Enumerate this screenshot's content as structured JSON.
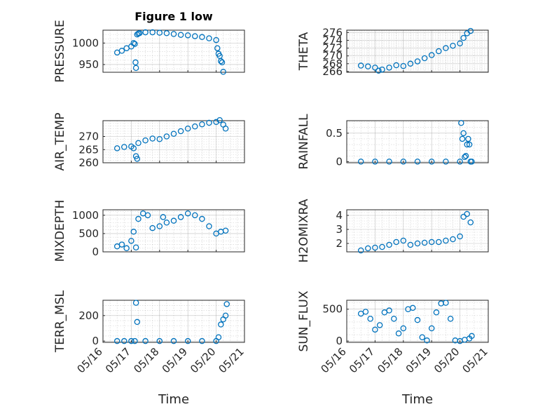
{
  "colors": {
    "marker": "#0072BD",
    "axis": "#262626",
    "grid": "#8c8c8c",
    "background": "#ffffff"
  },
  "chart_data": [
    {
      "type": "scatter",
      "panel": "pressure",
      "title": "Figure 1 low",
      "ylabel": "PRESSURE",
      "xlim": [
        "05/16 00:00",
        "05/21 00:00"
      ],
      "ylim": [
        932,
        1030
      ],
      "yticks": [
        950,
        1000
      ],
      "xticks": [
        "05/16",
        "05/17",
        "05/18",
        "05/19",
        "05/20",
        "05/21"
      ],
      "x": [
        "05/16 12:00",
        "05/16 16:00",
        "05/16 20:00",
        "05/17 00:00",
        "05/17 02:00",
        "05/17 03:00",
        "05/17 03:36",
        "05/17 04:00",
        "05/17 05:00",
        "05/17 06:00",
        "05/17 07:00",
        "05/17 12:00",
        "05/17 18:00",
        "05/18 00:00",
        "05/18 06:00",
        "05/18 12:00",
        "05/18 18:00",
        "05/19 00:00",
        "05/19 06:00",
        "05/19 12:00",
        "05/19 18:00",
        "05/20 00:00",
        "05/20 01:00",
        "05/20 02:00",
        "05/20 03:00",
        "05/20 04:00",
        "05/20 05:00",
        "05/20 06:00"
      ],
      "y": [
        978,
        982,
        988,
        992,
        1000,
        998,
        955,
        942,
        1020,
        1022,
        1023,
        1025,
        1025,
        1024,
        1023,
        1021,
        1019,
        1018,
        1016,
        1014,
        1011,
        1007,
        988,
        975,
        970,
        958,
        955,
        933
      ]
    },
    {
      "type": "scatter",
      "panel": "theta",
      "ylabel": "THETA",
      "xlim": [
        "05/16 00:00",
        "05/21 00:00"
      ],
      "ylim": [
        265.8,
        276.6
      ],
      "yticks": [
        266,
        268,
        270,
        272,
        274,
        276
      ],
      "x": [
        "05/16 12:00",
        "05/16 18:00",
        "05/17 00:00",
        "05/17 03:00",
        "05/17 06:00",
        "05/17 12:00",
        "05/17 18:00",
        "05/18 00:00",
        "05/18 06:00",
        "05/18 12:00",
        "05/18 18:00",
        "05/19 00:00",
        "05/19 06:00",
        "05/19 12:00",
        "05/19 18:00",
        "05/20 00:00",
        "05/20 03:00",
        "05/20 06:00",
        "05/20 09:00"
      ],
      "y": [
        267.5,
        267.3,
        267.0,
        266.2,
        266.5,
        267.0,
        267.6,
        267.4,
        268.0,
        268.6,
        269.4,
        270.2,
        271.2,
        272.0,
        272.6,
        273.2,
        274.6,
        275.8,
        276.4
      ]
    },
    {
      "type": "scatter",
      "panel": "air_temp",
      "ylabel": "AIR_TEMP",
      "xlim": [
        "05/16 00:00",
        "05/21 00:00"
      ],
      "ylim": [
        260,
        276
      ],
      "yticks": [
        260,
        265,
        270
      ],
      "x": [
        "05/16 12:00",
        "05/16 18:00",
        "05/17 00:00",
        "05/17 02:00",
        "05/17 04:00",
        "05/17 05:00",
        "05/17 06:00",
        "05/17 12:00",
        "05/17 18:00",
        "05/18 00:00",
        "05/18 06:00",
        "05/18 12:00",
        "05/18 18:00",
        "05/19 00:00",
        "05/19 06:00",
        "05/19 12:00",
        "05/19 18:00",
        "05/20 00:00",
        "05/20 03:00",
        "05/20 06:00",
        "05/20 08:00"
      ],
      "y": [
        265.5,
        266.0,
        266.2,
        265.5,
        262.5,
        261.5,
        267.5,
        268.5,
        269.2,
        269.0,
        270.0,
        271.0,
        272.0,
        273.0,
        273.8,
        274.6,
        275.2,
        275.5,
        276.2,
        274.5,
        273.0
      ]
    },
    {
      "type": "scatter",
      "panel": "rainfall",
      "ylabel": "RAINFALL",
      "xlim": [
        "05/16 00:00",
        "05/21 00:00"
      ],
      "ylim": [
        -0.02,
        0.72
      ],
      "yticks": [
        0,
        0.5
      ],
      "x": [
        "05/16 12:00",
        "05/17 00:00",
        "05/17 12:00",
        "05/18 00:00",
        "05/18 12:00",
        "05/19 00:00",
        "05/19 12:00",
        "05/20 00:00",
        "05/20 01:00",
        "05/20 02:00",
        "05/20 03:00",
        "05/20 04:00",
        "05/20 05:00",
        "05/20 06:00",
        "05/20 07:00",
        "05/20 08:00",
        "05/20 09:00",
        "05/20 10:00"
      ],
      "y": [
        0,
        0,
        0,
        0,
        0,
        0,
        0,
        0,
        0.68,
        0.4,
        0.5,
        0.08,
        0.1,
        0.3,
        0.4,
        0.3,
        0.0,
        0.0
      ]
    },
    {
      "type": "scatter",
      "panel": "mixdepth",
      "ylabel": "MIXDEPTH",
      "xlim": [
        "05/16 00:00",
        "05/21 00:00"
      ],
      "ylim": [
        0,
        1150
      ],
      "yticks": [
        0,
        500,
        1000
      ],
      "x": [
        "05/16 12:00",
        "05/16 16:00",
        "05/16 20:00",
        "05/17 00:00",
        "05/17 02:00",
        "05/17 04:00",
        "05/17 06:00",
        "05/17 10:00",
        "05/17 14:00",
        "05/17 18:00",
        "05/18 00:00",
        "05/18 03:00",
        "05/18 06:00",
        "05/18 12:00",
        "05/18 18:00",
        "05/19 00:00",
        "05/19 06:00",
        "05/19 12:00",
        "05/19 18:00",
        "05/20 00:00",
        "05/20 04:00",
        "05/20 08:00"
      ],
      "y": [
        150,
        200,
        100,
        300,
        550,
        120,
        900,
        1050,
        1000,
        650,
        700,
        950,
        800,
        850,
        950,
        1050,
        1000,
        900,
        700,
        500,
        550,
        580
      ]
    },
    {
      "type": "scatter",
      "panel": "h2omixra",
      "ylabel": "H2OMIXRA",
      "xlim": [
        "05/16 00:00",
        "05/21 00:00"
      ],
      "ylim": [
        1.4,
        4.4
      ],
      "yticks": [
        2,
        3,
        4
      ],
      "x": [
        "05/16 12:00",
        "05/16 18:00",
        "05/17 00:00",
        "05/17 06:00",
        "05/17 12:00",
        "05/17 18:00",
        "05/18 00:00",
        "05/18 06:00",
        "05/18 12:00",
        "05/18 18:00",
        "05/19 00:00",
        "05/19 06:00",
        "05/19 12:00",
        "05/19 18:00",
        "05/20 00:00",
        "05/20 03:00",
        "05/20 06:00",
        "05/20 09:00"
      ],
      "y": [
        1.5,
        1.65,
        1.7,
        1.75,
        1.9,
        2.1,
        2.2,
        1.9,
        2.0,
        2.05,
        2.1,
        2.1,
        2.2,
        2.3,
        2.5,
        3.9,
        4.1,
        3.5
      ]
    },
    {
      "type": "scatter",
      "panel": "terr_msl",
      "ylabel": "TERR_MSL",
      "xlabel": "Time",
      "xlim": [
        "05/16 00:00",
        "05/21 00:00"
      ],
      "ylim": [
        -10,
        320
      ],
      "yticks": [
        0,
        200
      ],
      "x": [
        "05/16 12:00",
        "05/16 18:00",
        "05/17 00:00",
        "05/17 03:00",
        "05/17 04:00",
        "05/17 05:00",
        "05/17 12:00",
        "05/18 00:00",
        "05/18 12:00",
        "05/19 00:00",
        "05/19 12:00",
        "05/20 00:00",
        "05/20 02:00",
        "05/20 04:00",
        "05/20 06:00",
        "05/20 08:00",
        "05/20 09:00"
      ],
      "y": [
        0,
        0,
        0,
        0,
        300,
        150,
        0,
        0,
        0,
        0,
        0,
        0,
        30,
        130,
        170,
        200,
        290
      ],
      "xticks": [
        "05/16",
        "05/17",
        "05/18",
        "05/19",
        "05/20",
        "05/21"
      ]
    },
    {
      "type": "scatter",
      "panel": "sun_flux",
      "ylabel": "SUN_FLUX",
      "xlabel": "Time",
      "xlim": [
        "05/16 00:00",
        "05/21 00:00"
      ],
      "ylim": [
        -20,
        640
      ],
      "yticks": [
        0,
        500
      ],
      "x": [
        "05/16 12:00",
        "05/16 16:00",
        "05/16 20:00",
        "05/17 00:00",
        "05/17 04:00",
        "05/17 08:00",
        "05/17 12:00",
        "05/17 16:00",
        "05/17 20:00",
        "05/18 00:00",
        "05/18 04:00",
        "05/18 08:00",
        "05/18 12:00",
        "05/18 16:00",
        "05/18 20:00",
        "05/19 00:00",
        "05/19 04:00",
        "05/19 08:00",
        "05/19 12:00",
        "05/19 16:00",
        "05/19 20:00",
        "05/20 00:00",
        "05/20 04:00",
        "05/20 08:00",
        "05/20 10:00"
      ],
      "y": [
        430,
        460,
        350,
        180,
        250,
        450,
        480,
        350,
        120,
        200,
        500,
        520,
        330,
        60,
        10,
        200,
        450,
        590,
        600,
        350,
        10,
        0,
        20,
        40,
        80
      ],
      "xticks": [
        "05/16",
        "05/17",
        "05/18",
        "05/19",
        "05/20",
        "05/21"
      ]
    }
  ]
}
